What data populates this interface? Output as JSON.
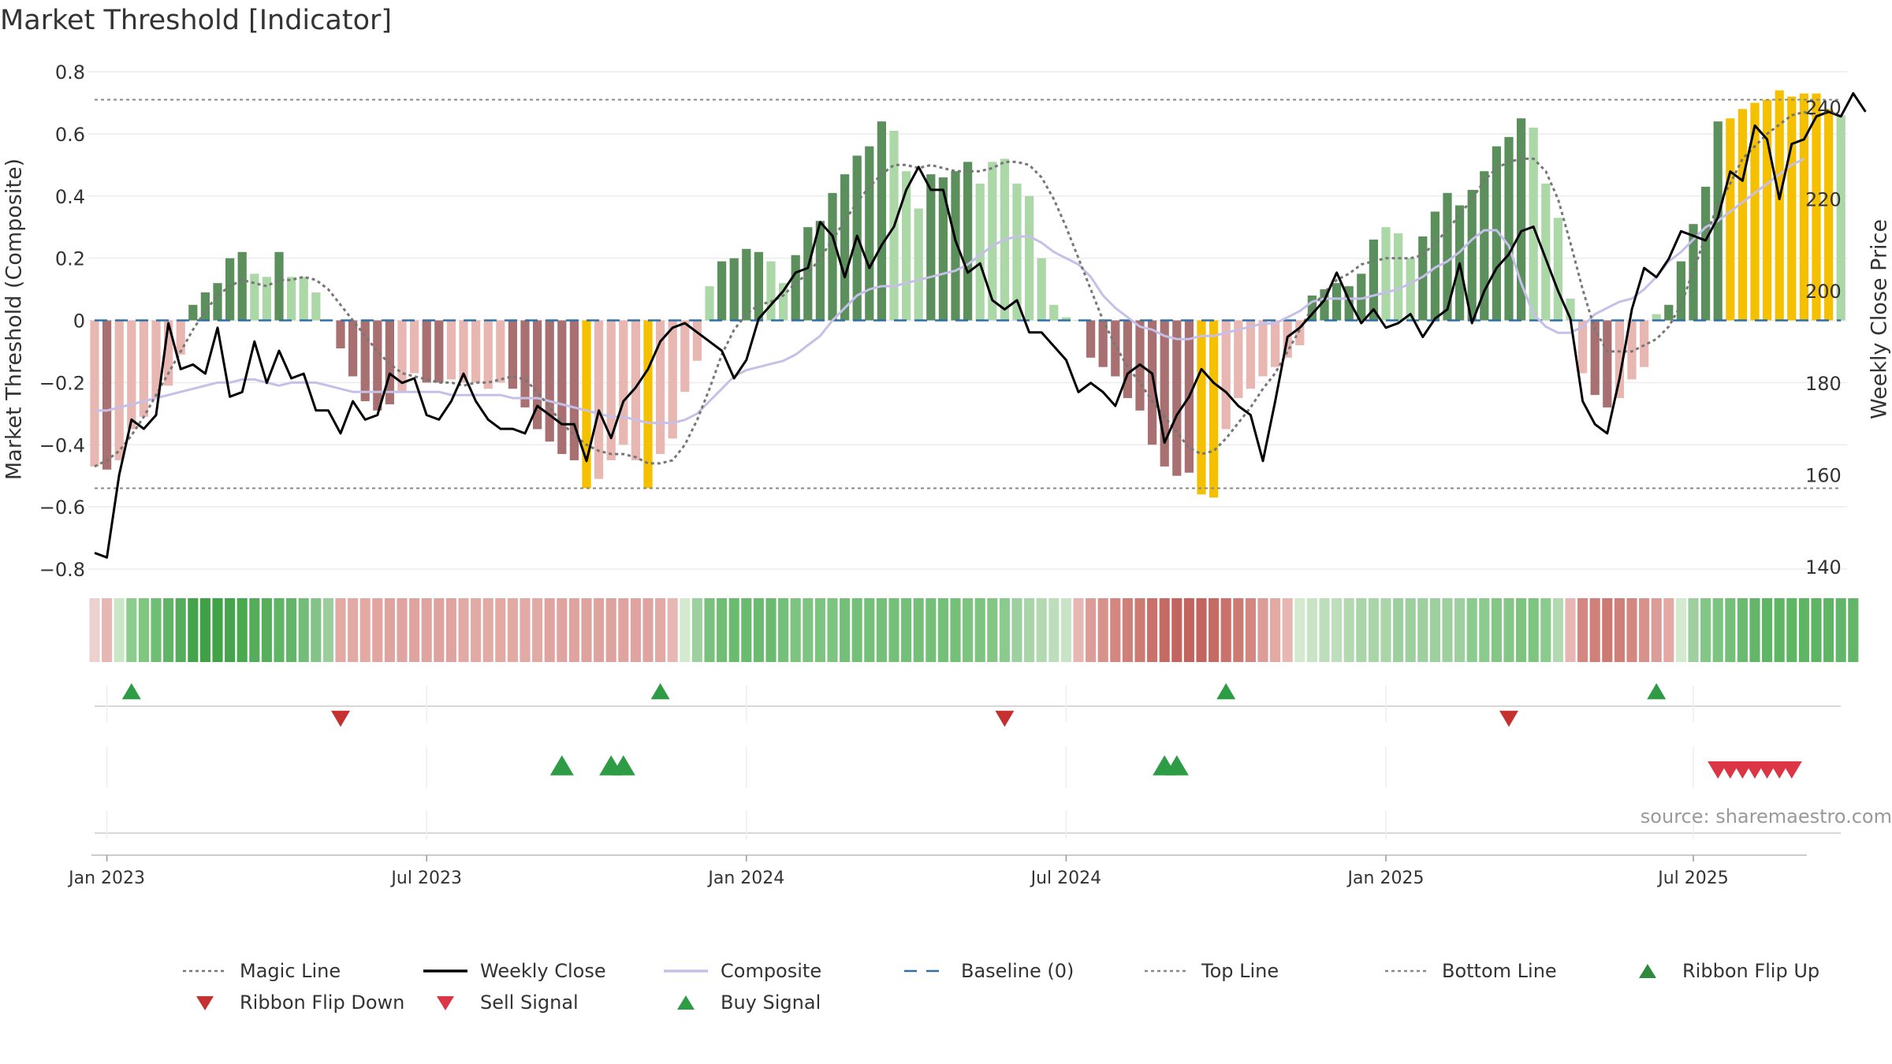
{
  "title": "Market Threshold [Indicator]",
  "source": "source: sharemaestro.com",
  "chart_data": {
    "type": "bar",
    "ylabel_left": "Market Threshold (Composite)",
    "ylabel_right": "Weekly Close Price",
    "ylim_left": [
      -0.8,
      0.8
    ],
    "yticks_left": [
      0.8,
      0.6,
      0.4,
      0.2,
      0,
      -0.2,
      -0.4,
      -0.6,
      -0.8
    ],
    "ytick_labels_left": [
      "0.8",
      "0.6",
      "0.4",
      "0.2",
      "0",
      "−0.2",
      "−0.4",
      "−0.6",
      "−0.8"
    ],
    "ylim_right": [
      140,
      240
    ],
    "yticks_right": [
      240,
      220,
      200,
      180,
      160,
      140
    ],
    "xticks": [
      "Jan 2023",
      "Jul 2023",
      "Jan 2024",
      "Jul 2024",
      "Jan 2025",
      "Jul 2025"
    ],
    "xtick_weeks": [
      1,
      27,
      53,
      79,
      105,
      130
    ],
    "top_line": 0.71,
    "bottom_line": -0.54,
    "bar_colors": {
      "strong_up": "#5b8f5b",
      "weak_up": "#acd8a7",
      "strong_down": "#a87070",
      "weak_down": "#e8b7b2",
      "extreme": "#f5c000"
    },
    "line_colors": {
      "magic": "#777777",
      "weekly_close": "#000000",
      "composite": "#c6bfe8",
      "baseline": "#2f6fa8",
      "threshold": "#888888"
    },
    "composite_bars": [
      -0.47,
      -0.48,
      -0.45,
      -0.35,
      -0.31,
      -0.25,
      -0.21,
      -0.11,
      0.05,
      0.09,
      0.12,
      0.2,
      0.22,
      0.15,
      0.14,
      0.22,
      0.14,
      0.14,
      0.09,
      0,
      -0.09,
      -0.18,
      -0.26,
      -0.29,
      -0.27,
      -0.23,
      -0.17,
      -0.2,
      -0.2,
      -0.19,
      -0.2,
      -0.2,
      -0.22,
      -0.2,
      -0.22,
      -0.28,
      -0.35,
      -0.39,
      -0.43,
      -0.45,
      -0.54,
      -0.51,
      -0.45,
      -0.4,
      -0.45,
      -0.54,
      -0.43,
      -0.38,
      -0.23,
      -0.13,
      0.11,
      0.19,
      0.2,
      0.23,
      0.22,
      0.19,
      0.12,
      0.21,
      0.3,
      0.32,
      0.41,
      0.47,
      0.53,
      0.56,
      0.64,
      0.61,
      0.48,
      0.36,
      0.47,
      0.46,
      0.48,
      0.51,
      0.44,
      0.51,
      0.52,
      0.44,
      0.4,
      0.2,
      0.05,
      0.01,
      0,
      -0.12,
      -0.15,
      -0.18,
      -0.25,
      -0.29,
      -0.4,
      -0.47,
      -0.5,
      -0.49,
      -0.56,
      -0.57,
      -0.35,
      -0.25,
      -0.22,
      -0.18,
      -0.15,
      -0.12,
      -0.08,
      0.08,
      0.1,
      0.12,
      0.11,
      0.15,
      0.26,
      0.3,
      0.28,
      0.2,
      0.27,
      0.35,
      0.41,
      0.37,
      0.42,
      0.48,
      0.56,
      0.59,
      0.65,
      0.62,
      0.44,
      0.33,
      0.07,
      -0.17,
      -0.24,
      -0.28,
      -0.25,
      -0.19,
      -0.15,
      0.02,
      0.05,
      0.19,
      0.31,
      0.43,
      0.64,
      0.65,
      0.68,
      0.7,
      0.71,
      0.74,
      0.72,
      0.73,
      0.73,
      0.68,
      0.66
    ],
    "bar_styles": [
      "weak_down",
      "strong_down",
      "weak_down",
      "weak_down",
      "weak_down",
      "weak_down",
      "weak_down",
      "weak_down",
      "strong_up",
      "strong_up",
      "strong_up",
      "strong_up",
      "strong_up",
      "weak_up",
      "weak_up",
      "strong_up",
      "weak_up",
      "weak_up",
      "weak_up",
      "weak_up",
      "strong_down",
      "strong_down",
      "strong_down",
      "strong_down",
      "strong_down",
      "weak_down",
      "weak_down",
      "strong_down",
      "strong_down",
      "weak_down",
      "weak_down",
      "weak_down",
      "weak_down",
      "weak_down",
      "strong_down",
      "strong_down",
      "strong_down",
      "strong_down",
      "strong_down",
      "strong_down",
      "extreme",
      "weak_down",
      "weak_down",
      "weak_down",
      "weak_down",
      "extreme",
      "weak_down",
      "weak_down",
      "weak_down",
      "weak_down",
      "weak_up",
      "strong_up",
      "strong_up",
      "strong_up",
      "strong_up",
      "weak_up",
      "weak_up",
      "strong_up",
      "strong_up",
      "strong_up",
      "strong_up",
      "strong_up",
      "strong_up",
      "strong_up",
      "strong_up",
      "weak_up",
      "weak_up",
      "weak_up",
      "strong_up",
      "strong_up",
      "strong_up",
      "strong_up",
      "weak_up",
      "weak_up",
      "weak_up",
      "weak_up",
      "weak_up",
      "weak_up",
      "weak_up",
      "weak_up",
      "weak_up",
      "strong_down",
      "strong_down",
      "strong_down",
      "strong_down",
      "strong_down",
      "strong_down",
      "strong_down",
      "strong_down",
      "strong_down",
      "extreme",
      "extreme",
      "weak_down",
      "weak_down",
      "weak_down",
      "weak_down",
      "weak_down",
      "weak_down",
      "weak_down",
      "strong_up",
      "strong_up",
      "strong_up",
      "strong_up",
      "strong_up",
      "strong_up",
      "weak_up",
      "weak_up",
      "weak_up",
      "strong_up",
      "strong_up",
      "strong_up",
      "strong_up",
      "strong_up",
      "strong_up",
      "strong_up",
      "strong_up",
      "strong_up",
      "weak_up",
      "weak_up",
      "weak_up",
      "weak_up",
      "weak_down",
      "strong_down",
      "strong_down",
      "weak_down",
      "weak_down",
      "weak_down",
      "weak_up",
      "strong_up",
      "strong_up",
      "strong_up",
      "strong_up",
      "strong_up",
      "extreme",
      "extreme",
      "extreme",
      "extreme",
      "extreme",
      "extreme",
      "extreme",
      "extreme",
      "extreme",
      "weak_up"
    ],
    "magic_line": [
      -0.47,
      -0.45,
      -0.42,
      -0.37,
      -0.31,
      -0.24,
      -0.17,
      -0.1,
      -0.03,
      0.03,
      0.08,
      0.11,
      0.13,
      0.12,
      0.11,
      0.13,
      0.13,
      0.14,
      0.13,
      0.1,
      0.05,
      0,
      -0.05,
      -0.1,
      -0.14,
      -0.17,
      -0.18,
      -0.19,
      -0.2,
      -0.2,
      -0.21,
      -0.2,
      -0.2,
      -0.19,
      -0.18,
      -0.19,
      -0.23,
      -0.28,
      -0.33,
      -0.37,
      -0.4,
      -0.42,
      -0.43,
      -0.43,
      -0.44,
      -0.46,
      -0.46,
      -0.45,
      -0.4,
      -0.32,
      -0.22,
      -0.11,
      -0.03,
      0.02,
      0.05,
      0.06,
      0.08,
      0.12,
      0.15,
      0.2,
      0.26,
      0.32,
      0.38,
      0.43,
      0.47,
      0.5,
      0.5,
      0.49,
      0.5,
      0.49,
      0.48,
      0.48,
      0.48,
      0.49,
      0.51,
      0.51,
      0.5,
      0.46,
      0.39,
      0.3,
      0.2,
      0.1,
      0,
      -0.08,
      -0.15,
      -0.2,
      -0.26,
      -0.31,
      -0.36,
      -0.41,
      -0.43,
      -0.42,
      -0.38,
      -0.33,
      -0.28,
      -0.22,
      -0.17,
      -0.1,
      -0.03,
      0.04,
      0.09,
      0.13,
      0.15,
      0.18,
      0.19,
      0.2,
      0.2,
      0.2,
      0.21,
      0.25,
      0.29,
      0.34,
      0.39,
      0.45,
      0.49,
      0.51,
      0.52,
      0.52,
      0.48,
      0.39,
      0.25,
      0.1,
      -0.03,
      -0.1,
      -0.1,
      -0.1,
      -0.08,
      -0.06,
      -0.02,
      0.05,
      0.16,
      0.27,
      0.37,
      0.44,
      0.52,
      0.56,
      0.6,
      0.63,
      0.66,
      0.67,
      0.66
    ],
    "composite_line": [
      -0.29,
      -0.29,
      -0.28,
      -0.27,
      -0.26,
      -0.25,
      -0.24,
      -0.23,
      -0.22,
      -0.21,
      -0.2,
      -0.2,
      -0.19,
      -0.19,
      -0.2,
      -0.21,
      -0.2,
      -0.2,
      -0.2,
      -0.21,
      -0.22,
      -0.23,
      -0.23,
      -0.23,
      -0.23,
      -0.23,
      -0.23,
      -0.23,
      -0.23,
      -0.24,
      -0.24,
      -0.24,
      -0.24,
      -0.24,
      -0.25,
      -0.25,
      -0.25,
      -0.26,
      -0.27,
      -0.28,
      -0.29,
      -0.3,
      -0.31,
      -0.31,
      -0.32,
      -0.33,
      -0.33,
      -0.33,
      -0.32,
      -0.3,
      -0.26,
      -0.22,
      -0.18,
      -0.16,
      -0.15,
      -0.14,
      -0.13,
      -0.11,
      -0.08,
      -0.05,
      0,
      0.04,
      0.08,
      0.1,
      0.11,
      0.11,
      0.12,
      0.13,
      0.14,
      0.15,
      0.16,
      0.18,
      0.21,
      0.24,
      0.26,
      0.27,
      0.27,
      0.25,
      0.22,
      0.2,
      0.18,
      0.14,
      0.08,
      0.04,
      0.01,
      -0.02,
      -0.03,
      -0.05,
      -0.06,
      -0.06,
      -0.05,
      -0.05,
      -0.04,
      -0.03,
      -0.02,
      -0.01,
      -0.01,
      0.01,
      0.03,
      0.06,
      0.07,
      0.07,
      0.07,
      0.07,
      0.08,
      0.09,
      0.1,
      0.12,
      0.14,
      0.17,
      0.19,
      0.22,
      0.26,
      0.29,
      0.29,
      0.24,
      0.12,
      0.02,
      -0.02,
      -0.04,
      -0.04,
      -0.02,
      0.02,
      0.04,
      0.06,
      0.07,
      0.1,
      0.14,
      0.19,
      0.22,
      0.26,
      0.3,
      0.32,
      0.35,
      0.38,
      0.41,
      0.44,
      0.47,
      0.5,
      0.52
    ],
    "weekly_close": [
      143,
      142,
      160,
      172,
      170,
      173,
      193,
      183,
      184,
      182,
      192,
      177,
      178,
      189,
      180,
      187,
      181,
      182,
      174,
      174,
      169,
      176,
      172,
      173,
      182,
      180,
      181,
      173,
      172,
      176,
      182,
      176,
      172,
      170,
      170,
      169,
      175,
      173,
      171,
      171,
      163,
      174,
      168,
      176,
      179,
      183,
      189,
      192,
      193,
      191,
      189,
      187,
      181,
      185,
      194,
      197,
      200,
      204,
      205,
      215,
      212,
      203,
      212,
      205,
      210,
      214,
      222,
      227,
      222,
      222,
      211,
      204,
      206,
      198,
      196,
      198,
      191,
      191,
      188,
      185,
      178,
      180,
      178,
      175,
      182,
      184,
      182,
      167,
      173,
      177,
      183,
      180,
      178,
      175,
      173,
      163,
      176,
      190,
      192,
      195,
      198,
      204,
      198,
      193,
      196,
      192,
      193,
      195,
      190,
      194,
      196,
      206,
      193,
      200,
      205,
      208,
      213,
      214,
      207,
      200,
      194,
      176,
      171,
      169,
      181,
      196,
      205,
      203,
      207,
      213,
      212,
      211,
      216,
      226,
      224,
      236,
      233,
      220,
      232,
      233,
      238,
      239,
      238,
      243,
      239
    ],
    "ribbon_colors": [
      "#ecd1cf",
      "#e7b8b3",
      "#c9e6c6",
      "#8ccc8e",
      "#7fc67f",
      "#6fbe74",
      "#5fb565",
      "#55ad5b",
      "#45a449",
      "#3fa045",
      "#40a347",
      "#46a54c",
      "#49a94f",
      "#55ad5b",
      "#56af5b",
      "#5eb564",
      "#63b669",
      "#74bc79",
      "#84c387",
      "#9ccd9d",
      "#e3aaa4",
      "#e2aaa4",
      "#e3aaa4",
      "#e2a5a0",
      "#e0a4a0",
      "#e0a4a0",
      "#dfa4a0",
      "#e0a4a0",
      "#dfa39f",
      "#e0a4a0",
      "#e2aaa4",
      "#e2aaa4",
      "#e2aaa4",
      "#e3aaa4",
      "#e3aaa4",
      "#e2aaa4",
      "#e2aaa4",
      "#e0a4a0",
      "#e0a4a0",
      "#e0a4a0",
      "#dfa39f",
      "#dfa39f",
      "#dfa39f",
      "#e0a4a0",
      "#e0a4a0",
      "#e0a4a0",
      "#e2aaa4",
      "#e7b8b3",
      "#d3eacf",
      "#9dd09e",
      "#79c27d",
      "#6fbe74",
      "#6abb6f",
      "#6abb6f",
      "#6abb6f",
      "#6abb6f",
      "#74c079",
      "#7cc47f",
      "#7cc47f",
      "#7cc47f",
      "#7cc47f",
      "#74c079",
      "#74c079",
      "#74c079",
      "#74c079",
      "#74c079",
      "#74c079",
      "#74c079",
      "#74c079",
      "#74c079",
      "#74c079",
      "#7cc47f",
      "#7cc47f",
      "#84c686",
      "#8ccb8e",
      "#9dd09e",
      "#a9d5a8",
      "#b2d9b0",
      "#bcdeba",
      "#c8e3c6",
      "#e7b8b3",
      "#dc9d98",
      "#d8928c",
      "#d48681",
      "#d08079",
      "#cd7a73",
      "#c9716a",
      "#c66b64",
      "#c3655e",
      "#c3655e",
      "#c3655e",
      "#c66b64",
      "#c9716a",
      "#cd7a73",
      "#d48681",
      "#dc9d98",
      "#e3aaa4",
      "#e7b8b3",
      "#d3eacf",
      "#c8e3c6",
      "#bcdeba",
      "#bcdeba",
      "#b2d9b0",
      "#a9d5a8",
      "#a9d5a8",
      "#a9d5a8",
      "#9dd09e",
      "#9dd09e",
      "#9dd09e",
      "#9dd09e",
      "#9dd09e",
      "#9dd09e",
      "#8ccb8e",
      "#8ccb8e",
      "#84c686",
      "#84c686",
      "#7cc47f",
      "#7cc47f",
      "#8ccb8e",
      "#b2d9b0",
      "#e7b8b3",
      "#d48681",
      "#d08079",
      "#cd7a73",
      "#d08079",
      "#d48681",
      "#d8928c",
      "#dc9d98",
      "#e3aaa4",
      "#d3eacf",
      "#9dd09e",
      "#84c686",
      "#7cc47f",
      "#74c079",
      "#6abb6f",
      "#63b669",
      "#5eb564",
      "#5eb564",
      "#5eb564",
      "#5eb564",
      "#5eb564",
      "#5eb564",
      "#63b669",
      "#63b669"
    ],
    "ribbon_flip_up": [
      3,
      46,
      92,
      127
    ],
    "ribbon_flip_down": [
      20,
      74,
      115
    ],
    "buy_signal": [
      38,
      42,
      43,
      87,
      88
    ],
    "sell_signal": [
      132,
      133,
      134,
      135,
      136,
      137,
      138
    ],
    "legend": [
      {
        "label": "Magic Line",
        "kind": "dotted",
        "color": "#777777"
      },
      {
        "label": "Weekly Close",
        "kind": "solid",
        "color": "#000000"
      },
      {
        "label": "Composite",
        "kind": "solid",
        "color": "#c6bfe8"
      },
      {
        "label": "Baseline (0)",
        "kind": "dashed",
        "color": "#2f6fa8"
      },
      {
        "label": "Top Line",
        "kind": "dotted",
        "color": "#888888"
      },
      {
        "label": "Bottom Line",
        "kind": "dotted",
        "color": "#888888"
      },
      {
        "label": "Ribbon Flip Up",
        "kind": "triangle-up",
        "color": "#2e8b3e"
      },
      {
        "label": "Ribbon Flip Down",
        "kind": "triangle-down",
        "color": "#c53030"
      },
      {
        "label": "Sell Signal",
        "kind": "triangle-down",
        "color": "#dc3545"
      },
      {
        "label": "Buy Signal",
        "kind": "triangle-up",
        "color": "#2e9b45"
      }
    ]
  }
}
